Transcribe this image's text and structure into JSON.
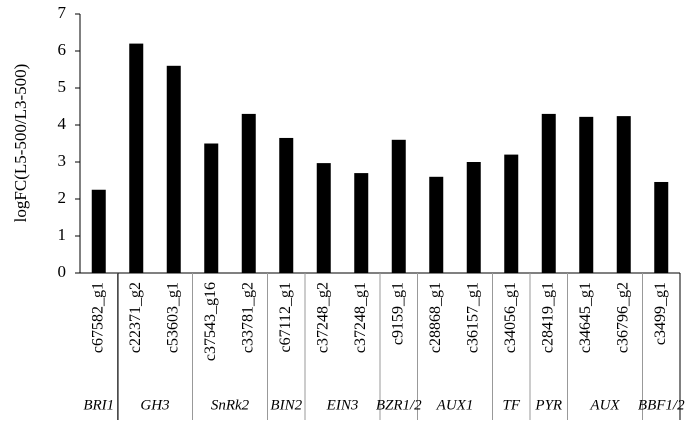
{
  "chart_data": {
    "type": "bar",
    "y_label": "logFC(L5-500/L3-500)",
    "categories": [
      "c67582_g1",
      "c22371_g2",
      "c53603_g1",
      "c37543_g16",
      "c33781_g2",
      "c67112_g1",
      "c37248_g2",
      "c37248_g1",
      "c9159_g1",
      "c28868_g1",
      "c36157_g1",
      "c34056_g1",
      "c28419_g1",
      "c34645_g1",
      "c36796_g2",
      "c3499_g1"
    ],
    "values": [
      2.25,
      6.2,
      5.6,
      3.5,
      4.3,
      3.65,
      2.97,
      2.7,
      3.6,
      2.6,
      3.0,
      3.2,
      4.3,
      4.22,
      4.24,
      2.46
    ],
    "groups": [
      {
        "label": "BRI1",
        "count": 1
      },
      {
        "label": "GH3",
        "count": 2
      },
      {
        "label": "SnRk2",
        "count": 2
      },
      {
        "label": "BIN2",
        "count": 1
      },
      {
        "label": "EIN3",
        "count": 2
      },
      {
        "label": "BZR1/2",
        "count": 1
      },
      {
        "label": "AUX1",
        "count": 2
      },
      {
        "label": "TF",
        "count": 1
      },
      {
        "label": "PYR",
        "count": 1
      },
      {
        "label": "AUX",
        "count": 2
      },
      {
        "label": "BBF1/2",
        "count": 1
      }
    ],
    "color": "#000000",
    "ylim": [
      0,
      7
    ],
    "yticks": [
      0,
      1,
      2,
      3,
      4,
      5,
      6,
      7
    ],
    "grid": false
  }
}
